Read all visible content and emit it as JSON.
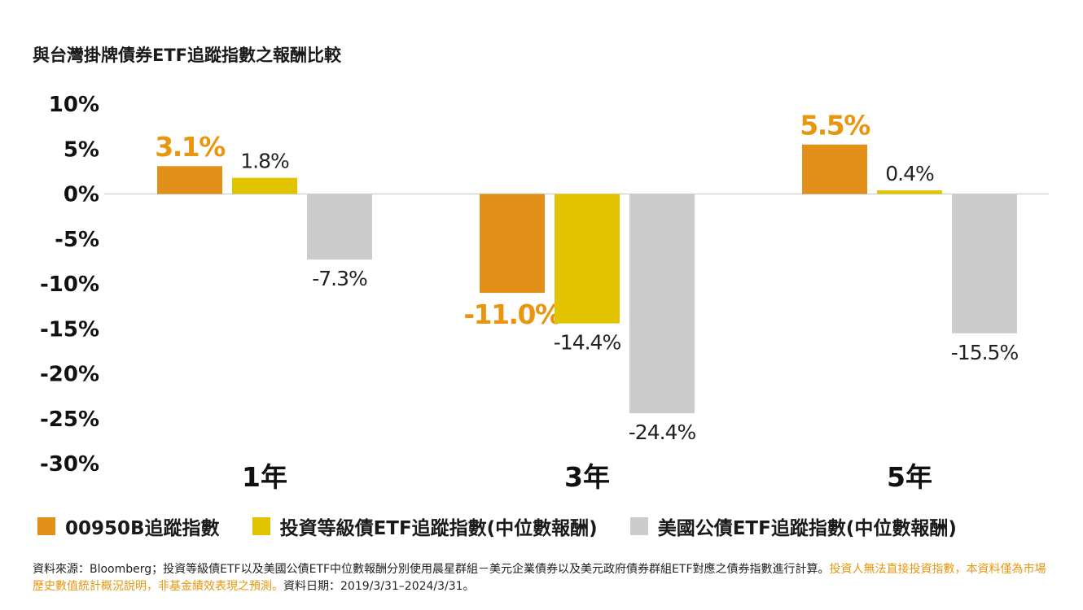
{
  "title": "與台灣掛牌債券ETF追蹤指數之報酬比較",
  "colors": {
    "orange": "#e3901b",
    "yellow": "#e2c300",
    "gray": "#cccccc",
    "highlight_label": "#e8960f"
  },
  "chart_data": {
    "type": "bar",
    "categories": [
      "1年",
      "3年",
      "5年"
    ],
    "series": [
      {
        "name": "00950B追蹤指數",
        "values": [
          3.1,
          -11.0,
          5.5
        ],
        "labels": [
          "3.1%",
          "-11.0%",
          "5.5%"
        ]
      },
      {
        "name": "投資等級債ETF追蹤指數(中位數報酬)",
        "values": [
          1.8,
          -14.4,
          0.4
        ],
        "labels": [
          "1.8%",
          "-14.4%",
          "0.4%"
        ]
      },
      {
        "name": "美國公債ETF追蹤指數(中位數報酬)",
        "values": [
          -7.3,
          -24.4,
          -15.5
        ],
        "labels": [
          "-7.3%",
          "-24.4%",
          "-15.5%"
        ]
      }
    ],
    "yticks": [
      "10%",
      "5%",
      "0%",
      "-5%",
      "-10%",
      "-15%",
      "-20%",
      "-25%",
      "-30%"
    ],
    "ylim": [
      -30,
      10
    ],
    "grid": false,
    "legend_position": "bottom"
  },
  "footnote": {
    "part1": "資料來源：Bloomberg；投資等級債ETF以及美國公債ETF中位數報酬分別使用晨星群組－美元企業債券以及美元政府債券群組ETF對應之債券指數進行計算。",
    "part2_highlight": "投資人無法直接投資指數，本資料僅為市場歷史數值統計概況說明，非基金績效表現之預測。",
    "part3": "資料日期：2019/3/31–2024/3/31。"
  }
}
